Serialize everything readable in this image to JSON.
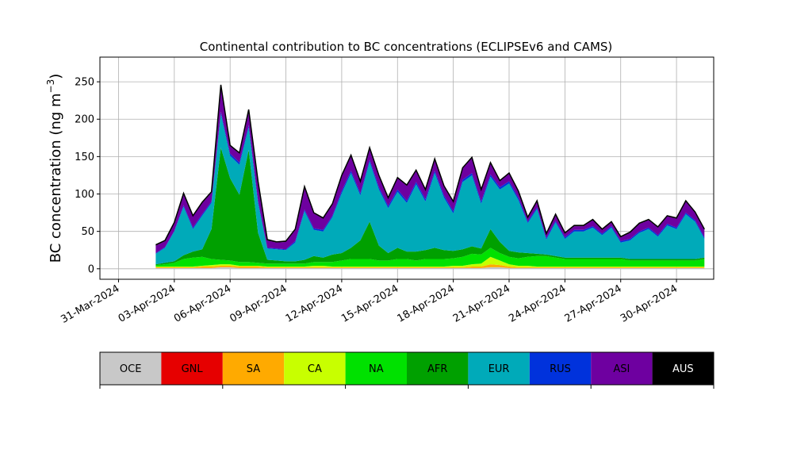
{
  "chart_data": {
    "type": "area",
    "stacked": true,
    "title": "Continental contribution to BC concentrations (ECLIPSEv6 and CAMS)",
    "ylabel": "BC concentration (ng m",
    "ylabel_sup": "−3",
    "ylabel_close": ")",
    "ylim": [
      -14,
      283
    ],
    "yticks": [
      0,
      50,
      100,
      150,
      200,
      250
    ],
    "xlim": [
      "2024-03-30",
      "2024-05-02"
    ],
    "xticks": [
      "31-Mar-2024",
      "03-Apr-2024",
      "06-Apr-2024",
      "09-Apr-2024",
      "12-Apr-2024",
      "15-Apr-2024",
      "18-Apr-2024",
      "21-Apr-2024",
      "24-Apr-2024",
      "27-Apr-2024",
      "30-Apr-2024"
    ],
    "grid": true,
    "legend_position": "colorbar-below",
    "x": [
      "2024-04-02 00",
      "2024-04-02 12",
      "2024-04-03 00",
      "2024-04-03 12",
      "2024-04-04 00",
      "2024-04-04 12",
      "2024-04-05 00",
      "2024-04-05 12",
      "2024-04-06 00",
      "2024-04-06 12",
      "2024-04-07 00",
      "2024-04-07 12",
      "2024-04-08 00",
      "2024-04-08 12",
      "2024-04-09 00",
      "2024-04-09 12",
      "2024-04-10 00",
      "2024-04-10 12",
      "2024-04-11 00",
      "2024-04-11 12",
      "2024-04-12 00",
      "2024-04-12 12",
      "2024-04-13 00",
      "2024-04-13 12",
      "2024-04-14 00",
      "2024-04-14 12",
      "2024-04-15 00",
      "2024-04-15 12",
      "2024-04-16 00",
      "2024-04-16 12",
      "2024-04-17 00",
      "2024-04-17 12",
      "2024-04-18 00",
      "2024-04-18 12",
      "2024-04-19 00",
      "2024-04-19 12",
      "2024-04-20 00",
      "2024-04-20 12",
      "2024-04-21 00",
      "2024-04-21 12",
      "2024-04-22 00",
      "2024-04-22 12",
      "2024-04-23 00",
      "2024-04-23 12",
      "2024-04-24 00",
      "2024-04-24 12",
      "2024-04-25 00",
      "2024-04-25 12",
      "2024-04-26 00",
      "2024-04-26 12",
      "2024-04-27 00",
      "2024-04-27 12",
      "2024-04-28 00",
      "2024-04-28 12",
      "2024-04-29 00",
      "2024-04-29 12",
      "2024-04-30 00",
      "2024-04-30 12",
      "2024-05-01 00",
      "2024-05-01 12"
    ],
    "series": [
      {
        "name": "OCE",
        "color": "#c8c8c8",
        "values": [
          1,
          1,
          1,
          1,
          1,
          1,
          1,
          2,
          2,
          1,
          1,
          1,
          1,
          1,
          1,
          1,
          1,
          1,
          1,
          1,
          1,
          1,
          1,
          1,
          1,
          1,
          1,
          1,
          1,
          1,
          1,
          1,
          1,
          1,
          1,
          1,
          2,
          2,
          1,
          1,
          1,
          1,
          1,
          1,
          1,
          1,
          1,
          1,
          1,
          1,
          1,
          1,
          1,
          1,
          1,
          1,
          1,
          1,
          1,
          1
        ]
      },
      {
        "name": "GNL",
        "color": "#e60000",
        "values": [
          0,
          0,
          0,
          0,
          0,
          0,
          0,
          0,
          0,
          0,
          0,
          0,
          0,
          0,
          0,
          0,
          0,
          0,
          0,
          0,
          0,
          0,
          0,
          0,
          0,
          0,
          0,
          0,
          0,
          0,
          0,
          0,
          0,
          0,
          0,
          0,
          0,
          0,
          0,
          0,
          0,
          0,
          0,
          0,
          0,
          0,
          0,
          0,
          0,
          0,
          0,
          0,
          0,
          0,
          0,
          0,
          0,
          0,
          0,
          0
        ]
      },
      {
        "name": "SA",
        "color": "#ffaa00",
        "values": [
          1,
          1,
          1,
          1,
          1,
          2,
          2,
          2,
          2,
          2,
          2,
          2,
          1,
          1,
          1,
          1,
          1,
          1,
          1,
          1,
          1,
          1,
          1,
          1,
          1,
          1,
          1,
          1,
          1,
          1,
          1,
          1,
          1,
          1,
          2,
          2,
          4,
          3,
          2,
          1,
          1,
          1,
          1,
          1,
          1,
          1,
          1,
          1,
          1,
          1,
          1,
          1,
          1,
          1,
          1,
          1,
          1,
          1,
          1,
          1
        ]
      },
      {
        "name": "CA",
        "color": "#c8ff00",
        "values": [
          1,
          1,
          1,
          1,
          1,
          1,
          2,
          2,
          2,
          1,
          1,
          1,
          1,
          1,
          1,
          1,
          1,
          2,
          2,
          1,
          1,
          1,
          1,
          1,
          1,
          1,
          1,
          1,
          1,
          1,
          1,
          1,
          2,
          2,
          3,
          4,
          10,
          6,
          3,
          2,
          2,
          1,
          1,
          1,
          1,
          1,
          1,
          1,
          1,
          1,
          1,
          1,
          1,
          1,
          1,
          1,
          1,
          1,
          1,
          1
        ]
      },
      {
        "name": "NA",
        "color": "#00e100",
        "values": [
          2,
          3,
          5,
          10,
          12,
          12,
          8,
          6,
          5,
          5,
          5,
          4,
          4,
          4,
          4,
          4,
          4,
          5,
          5,
          6,
          8,
          10,
          10,
          10,
          8,
          8,
          10,
          10,
          8,
          10,
          10,
          10,
          10,
          12,
          14,
          12,
          12,
          10,
          10,
          10,
          12,
          14,
          14,
          12,
          10,
          10,
          10,
          10,
          10,
          10,
          10,
          8,
          8,
          8,
          8,
          8,
          8,
          8,
          8,
          10
        ]
      },
      {
        "name": "AFR",
        "color": "#00a000",
        "values": [
          1,
          2,
          2,
          5,
          8,
          10,
          40,
          150,
          110,
          90,
          150,
          40,
          5,
          4,
          3,
          3,
          5,
          8,
          6,
          10,
          10,
          15,
          25,
          50,
          20,
          10,
          15,
          10,
          12,
          12,
          15,
          12,
          10,
          10,
          10,
          8,
          25,
          15,
          8,
          8,
          5,
          3,
          2,
          2,
          2,
          2,
          2,
          2,
          2,
          2,
          2,
          2,
          2,
          2,
          2,
          2,
          2,
          2,
          2,
          2
        ]
      },
      {
        "name": "EUR",
        "color": "#00aab9",
        "values": [
          14,
          20,
          40,
          65,
          30,
          45,
          35,
          45,
          30,
          40,
          30,
          40,
          15,
          15,
          15,
          25,
          65,
          35,
          35,
          50,
          80,
          100,
          60,
          80,
          75,
          60,
          75,
          65,
          90,
          65,
          100,
          70,
          50,
          90,
          95,
          60,
          70,
          70,
          90,
          70,
          40,
          60,
          20,
          45,
          25,
          35,
          35,
          40,
          30,
          40,
          20,
          25,
          35,
          40,
          30,
          45,
          40,
          60,
          50,
          25
        ]
      },
      {
        "name": "RUS",
        "color": "#0032dc",
        "values": [
          1,
          1,
          1,
          2,
          2,
          2,
          2,
          3,
          3,
          3,
          3,
          3,
          1,
          1,
          1,
          2,
          2,
          2,
          2,
          2,
          3,
          3,
          3,
          3,
          3,
          3,
          3,
          3,
          3,
          3,
          3,
          3,
          3,
          3,
          3,
          3,
          3,
          3,
          3,
          3,
          2,
          2,
          2,
          2,
          2,
          2,
          2,
          2,
          2,
          2,
          2,
          2,
          2,
          2,
          2,
          2,
          2,
          2,
          2,
          2
        ]
      },
      {
        "name": "ASI",
        "color": "#6e00a0",
        "values": [
          10,
          8,
          10,
          15,
          15,
          15,
          12,
          35,
          10,
          12,
          20,
          25,
          10,
          8,
          10,
          15,
          30,
          20,
          15,
          15,
          20,
          20,
          15,
          15,
          15,
          10,
          15,
          20,
          15,
          12,
          15,
          12,
          12,
          15,
          20,
          15,
          15,
          8,
          10,
          8,
          5,
          8,
          5,
          8,
          5,
          5,
          5,
          8,
          5,
          5,
          5,
          8,
          10,
          10,
          10,
          10,
          12,
          15,
          10,
          10
        ]
      },
      {
        "name": "AUS",
        "color": "#000000",
        "values": [
          1,
          1,
          1,
          1,
          1,
          1,
          1,
          1,
          1,
          1,
          1,
          1,
          1,
          1,
          1,
          1,
          1,
          1,
          1,
          1,
          1,
          1,
          1,
          1,
          1,
          1,
          1,
          1,
          1,
          1,
          1,
          1,
          1,
          1,
          1,
          1,
          1,
          1,
          1,
          1,
          1,
          1,
          1,
          1,
          1,
          1,
          1,
          1,
          1,
          1,
          1,
          1,
          1,
          1,
          1,
          1,
          1,
          1,
          1,
          1
        ]
      }
    ]
  }
}
